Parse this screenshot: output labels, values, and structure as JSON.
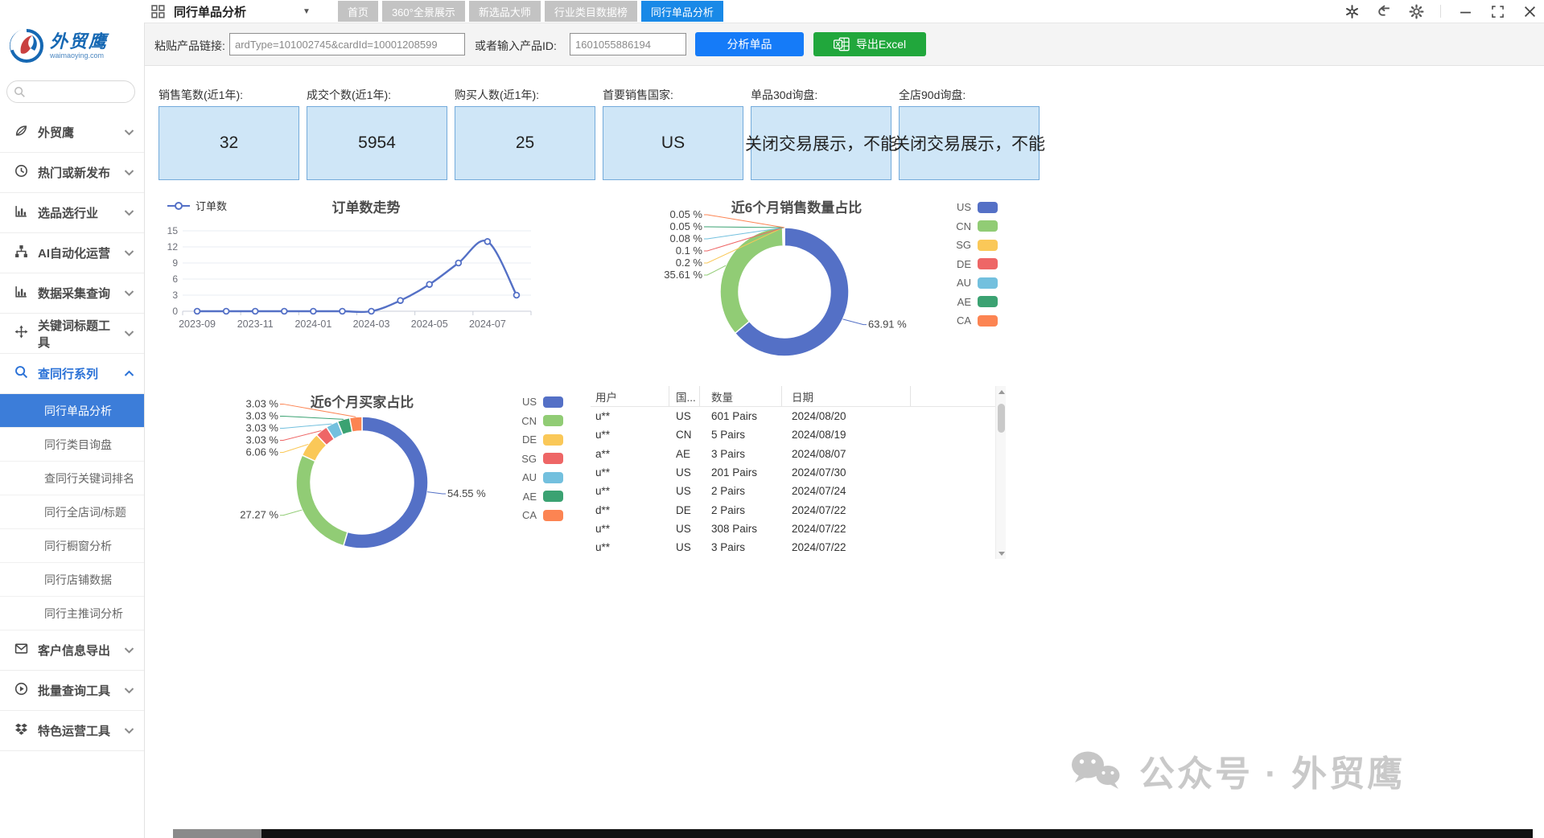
{
  "titlebar": {
    "app_title": "同行单品分析",
    "tabs": [
      {
        "label": "首页",
        "active": false
      },
      {
        "label": "360°全景展示",
        "active": false
      },
      {
        "label": "新选品大师",
        "active": false
      },
      {
        "label": "行业类目数据榜",
        "active": false
      },
      {
        "label": "同行单品分析",
        "active": true
      }
    ]
  },
  "sidebar": {
    "logo": {
      "title": "外贸鹰",
      "subtitle": "waimaoying.com"
    },
    "search": {
      "placeholder": ""
    },
    "sections": [
      {
        "label": "外贸鹰",
        "icon": "leaf-icon"
      },
      {
        "label": "热门或新发布",
        "icon": "clock-icon"
      },
      {
        "label": "选品选行业",
        "icon": "bar-chart-icon"
      },
      {
        "label": "AI自动化运营",
        "icon": "sitemap-icon"
      },
      {
        "label": "数据采集查询",
        "icon": "bar-chart-icon"
      },
      {
        "label": "关键词标题工具",
        "icon": "move-icon"
      },
      {
        "label": "查同行系列",
        "icon": "search-icon",
        "expanded": true,
        "highlighted": true
      }
    ],
    "subitems": [
      {
        "label": "同行单品分析",
        "active": true
      },
      {
        "label": "同行类目询盘",
        "active": false
      },
      {
        "label": "查同行关键词排名",
        "active": false
      },
      {
        "label": "同行全店词/标题",
        "active": false
      },
      {
        "label": "同行橱窗分析",
        "active": false
      },
      {
        "label": "同行店铺数据",
        "active": false
      },
      {
        "label": "同行主推词分析",
        "active": false
      }
    ],
    "sections_bottom": [
      {
        "label": "客户信息导出",
        "icon": "mail-icon"
      },
      {
        "label": "批量查询工具",
        "icon": "play-icon"
      },
      {
        "label": "特色运营工具",
        "icon": "dropbox-icon"
      }
    ]
  },
  "toolbar": {
    "link_label": "粘贴产品链接:",
    "link_value": "ardType=101002745&cardId=10001208599",
    "id_label": "或者输入产品ID:",
    "id_value": "1601055886194",
    "analyze_label": "分析单品",
    "export_label": "导出Excel"
  },
  "stats": [
    {
      "label": "销售笔数(近1年):",
      "value": "32"
    },
    {
      "label": "成交个数(近1年):",
      "value": "5954"
    },
    {
      "label": "购买人数(近1年):",
      "value": "25"
    },
    {
      "label": "首要销售国家:",
      "value": "US"
    },
    {
      "label": "单品30d询盘:",
      "value": "关闭交易展示，不能"
    },
    {
      "label": "全店90d询盘:",
      "value": "关闭交易展示，不能"
    }
  ],
  "chart_data": [
    {
      "id": "orders-trend",
      "type": "line",
      "title": "订单数走势",
      "legend": [
        "订单数"
      ],
      "x": [
        "2023-09",
        "2023-10",
        "2023-11",
        "2023-12",
        "2024-01",
        "2024-02",
        "2024-03",
        "2024-04",
        "2024-05",
        "2024-06",
        "2024-07",
        "2024-08"
      ],
      "x_tick_labels": [
        "2023-09",
        "2023-11",
        "2024-01",
        "2024-03",
        "2024-05",
        "2024-07"
      ],
      "values": [
        0,
        0,
        0,
        0,
        0,
        0,
        0,
        2,
        5,
        9,
        13,
        3
      ],
      "ylim": [
        0,
        15
      ],
      "yticks": [
        0,
        3,
        6,
        9,
        12,
        15
      ],
      "line_color": "#5470C6",
      "grid": true,
      "legend_position": "top-left"
    },
    {
      "id": "sales-share",
      "type": "pie",
      "title": "近6个月销售数量占比",
      "unit": "%",
      "series": [
        {
          "name": "US",
          "value": 63.91
        },
        {
          "name": "CN",
          "value": 35.61
        },
        {
          "name": "SG",
          "value": 0.2
        },
        {
          "name": "DE",
          "value": 0.1
        },
        {
          "name": "AU",
          "value": 0.08
        },
        {
          "name": "AE",
          "value": 0.05
        },
        {
          "name": "CA",
          "value": 0.05
        }
      ],
      "legend_position": "right"
    },
    {
      "id": "buyers-share",
      "type": "pie",
      "title": "近6个月买家占比",
      "unit": "%",
      "series": [
        {
          "name": "US",
          "value": 54.55
        },
        {
          "name": "CN",
          "value": 27.27
        },
        {
          "name": "DE",
          "value": 6.06
        },
        {
          "name": "SG",
          "value": 3.03
        },
        {
          "name": "AU",
          "value": 3.03
        },
        {
          "name": "AE",
          "value": 3.03
        },
        {
          "name": "CA",
          "value": 3.03
        }
      ],
      "legend_position": "right"
    }
  ],
  "table": {
    "headers": [
      "用户",
      "国...",
      "数量",
      "日期"
    ],
    "rows": [
      [
        "u**",
        "US",
        "601 Pairs",
        "2024/08/20"
      ],
      [
        "u**",
        "CN",
        "5 Pairs",
        "2024/08/19"
      ],
      [
        "a**",
        "AE",
        "3 Pairs",
        "2024/08/07"
      ],
      [
        "u**",
        "US",
        "201 Pairs",
        "2024/07/30"
      ],
      [
        "u**",
        "US",
        "2 Pairs",
        "2024/07/24"
      ],
      [
        "d**",
        "DE",
        "2 Pairs",
        "2024/07/22"
      ],
      [
        "u**",
        "US",
        "308 Pairs",
        "2024/07/22"
      ],
      [
        "u**",
        "US",
        "3 Pairs",
        "2024/07/22"
      ]
    ]
  },
  "watermark": {
    "text": "公众号 · 外贸鹰"
  },
  "colors": {
    "accent_blue": "#157bf8",
    "active_tab": "#1989e7",
    "excel_green": "#21a73c",
    "sidebar_active": "#3c7dd9",
    "stat_box_bg": "#cfe6f7",
    "stat_box_border": "#74abdb",
    "palette": [
      "#5470C6",
      "#91CC75",
      "#FAC858",
      "#EE6666",
      "#73C0DE",
      "#3BA272",
      "#FC8452"
    ]
  }
}
